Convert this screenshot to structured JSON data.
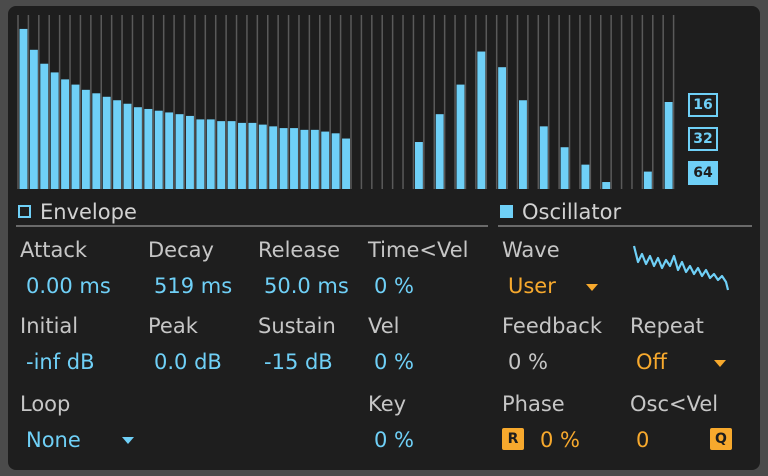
{
  "harmonics": [
    0.92,
    0.8,
    0.72,
    0.67,
    0.63,
    0.6,
    0.57,
    0.55,
    0.53,
    0.51,
    0.49,
    0.47,
    0.46,
    0.45,
    0.44,
    0.43,
    0.42,
    0.4,
    0.4,
    0.39,
    0.39,
    0.38,
    0.38,
    0.37,
    0.36,
    0.35,
    0.35,
    0.34,
    0.34,
    0.33,
    0.32,
    0.29,
    0,
    0,
    0,
    0,
    0,
    0,
    0.27,
    0,
    0.43,
    0,
    0.6,
    0,
    0.79,
    0,
    0.7,
    0,
    0.51,
    0,
    0.36,
    0,
    0.24,
    0,
    0.14,
    0,
    0.04,
    0,
    0,
    0,
    0.1,
    0,
    0.5,
    0
  ],
  "resolution": {
    "options": [
      "16",
      "32",
      "64"
    ],
    "selected": 2
  },
  "envelope": {
    "title": "Envelope",
    "params": [
      {
        "label": "Attack",
        "value": "0.00 ms"
      },
      {
        "label": "Decay",
        "value": "519 ms"
      },
      {
        "label": "Release",
        "value": "50.0 ms"
      },
      {
        "label": "Time<Vel",
        "value": "0 %"
      },
      {
        "label": "Initial",
        "value": "-inf dB"
      },
      {
        "label": "Peak",
        "value": "0.0 dB"
      },
      {
        "label": "Sustain",
        "value": "-15 dB"
      },
      {
        "label": "Vel",
        "value": "0 %"
      },
      {
        "label": "Loop",
        "value": "None"
      },
      {
        "label": "Key",
        "value": "0 %"
      }
    ]
  },
  "oscillator": {
    "title": "Oscillator",
    "params": [
      {
        "label": "Wave",
        "value": "User"
      },
      {
        "label": "Feedback",
        "value": "0 %"
      },
      {
        "label": "Repeat",
        "value": "Off"
      },
      {
        "label": "Phase",
        "value": "0 %",
        "button": "R"
      },
      {
        "label": "Osc<Vel",
        "value": "0",
        "button": "Q"
      }
    ]
  }
}
